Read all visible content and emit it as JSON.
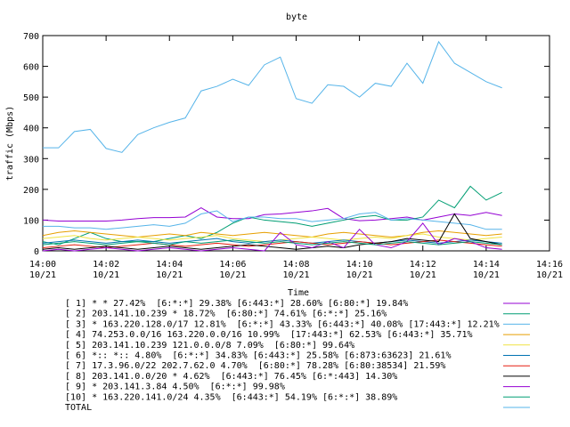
{
  "chart_data": {
    "type": "line",
    "title": "byte",
    "xlabel": "Time",
    "ylabel": "traffic (Mbps)",
    "xlim": [
      0,
      16
    ],
    "xticks": [
      {
        "value": 0,
        "label": "14:00 10/21"
      },
      {
        "value": 2,
        "label": "14:02 10/21"
      },
      {
        "value": 4,
        "label": "14:04 10/21"
      },
      {
        "value": 6,
        "label": "14:06 10/21"
      },
      {
        "value": 8,
        "label": "14:08 10/21"
      },
      {
        "value": 10,
        "label": "14:10 10/21"
      },
      {
        "value": 12,
        "label": "14:12 10/21"
      },
      {
        "value": 14,
        "label": "14:14 10/21"
      },
      {
        "value": 16,
        "label": "14:16 10/21"
      }
    ],
    "ylim": [
      0,
      700
    ],
    "yticks": [
      0,
      100,
      200,
      300,
      400,
      500,
      600,
      700
    ],
    "x": [
      0,
      0.5,
      1,
      1.5,
      2,
      2.5,
      3,
      3.5,
      4,
      4.5,
      5,
      5.5,
      6,
      6.5,
      7,
      7.5,
      8,
      8.5,
      9,
      9.5,
      10,
      10.5,
      11,
      11.5,
      12,
      12.5,
      13,
      13.5,
      14,
      14.5
    ],
    "series": [
      {
        "name": "[ 1] * * 27.42%  [6:*:*] 29.38% [6:443:*] 28.60% [6:80:*] 19.84%",
        "color": "#9400d3",
        "values": [
          100,
          97,
          97,
          97,
          97,
          100,
          105,
          108,
          108,
          110,
          140,
          110,
          105,
          105,
          118,
          120,
          125,
          130,
          138,
          105,
          98,
          100,
          105,
          110,
          100,
          110,
          120,
          115,
          125,
          115
        ]
      },
      {
        "name": "[ 2] 203.141.10.239 * 18.72%  [6:80:*] 74.61% [6:*:*] 25.16%",
        "color": "#009e73",
        "values": [
          30,
          20,
          40,
          60,
          40,
          30,
          30,
          30,
          40,
          50,
          40,
          60,
          90,
          110,
          100,
          95,
          90,
          80,
          90,
          100,
          110,
          115,
          100,
          100,
          110,
          165,
          140,
          210,
          165,
          190
        ]
      },
      {
        "name": "[ 3] * 163.220.128.0/17 12.81%  [6:*:*] 43.33% [6:443:*] 40.08% [17:443:*] 12.21%",
        "color": "#56b4e9",
        "values": [
          80,
          80,
          75,
          75,
          70,
          75,
          80,
          85,
          80,
          90,
          120,
          130,
          95,
          110,
          110,
          105,
          105,
          95,
          100,
          105,
          120,
          125,
          100,
          105,
          100,
          95,
          90,
          85,
          70,
          70
        ]
      },
      {
        "name": "[ 4] 74.253.0.0/16 163.220.0.0/16 10.99%  [17:443:*] 62.53% [6:443:*] 35.71%",
        "color": "#e69f00",
        "values": [
          50,
          60,
          65,
          60,
          55,
          50,
          45,
          50,
          55,
          50,
          60,
          55,
          50,
          55,
          60,
          55,
          50,
          45,
          55,
          60,
          55,
          50,
          45,
          50,
          60,
          65,
          60,
          55,
          50,
          55
        ]
      },
      {
        "name": "[ 5] 203.141.10.239 121.0.0.0/8 7.09%  [6:80:*] 99.64%",
        "color": "#f0e442",
        "values": [
          40,
          45,
          50,
          40,
          35,
          40,
          45,
          40,
          35,
          40,
          45,
          50,
          40,
          35,
          30,
          35,
          40,
          45,
          40,
          35,
          40,
          45,
          40,
          50,
          55,
          45,
          40,
          35,
          40,
          45
        ]
      },
      {
        "name": "[ 6] *:: *:: 4.80%  [6:*:*] 34.83% [6:443:*] 25.58% [6:873:63623] 21.61%",
        "color": "#0072b2",
        "values": [
          25,
          30,
          35,
          30,
          25,
          30,
          35,
          30,
          25,
          30,
          35,
          40,
          30,
          25,
          30,
          35,
          30,
          25,
          30,
          35,
          30,
          25,
          30,
          35,
          30,
          25,
          30,
          35,
          30,
          25
        ]
      },
      {
        "name": "[ 7] 17.3.96.0/22 202.7.62.0 4.70%  [6:80:*] 78.28% [6:80:38534] 21.59%",
        "color": "#e51e10",
        "values": [
          10,
          15,
          20,
          15,
          10,
          15,
          20,
          25,
          20,
          15,
          20,
          25,
          20,
          15,
          20,
          25,
          30,
          25,
          20,
          25,
          30,
          25,
          20,
          25,
          30,
          35,
          30,
          25,
          20,
          15
        ]
      },
      {
        "name": "[ 8] 203.141.0.0/20 * 4.62%  [6:443:*] 76.45% [6:*:443] 14.30%",
        "color": "#000000",
        "values": [
          5,
          10,
          5,
          10,
          15,
          10,
          5,
          10,
          15,
          10,
          5,
          10,
          15,
          20,
          15,
          10,
          5,
          10,
          15,
          10,
          20,
          25,
          30,
          40,
          35,
          30,
          120,
          40,
          30,
          20
        ]
      },
      {
        "name": "[ 9] * 203.141.3.84 4.50%  [6:*:*] 99.98%",
        "color": "#9400d3",
        "values": [
          0,
          5,
          0,
          5,
          10,
          5,
          0,
          5,
          10,
          5,
          0,
          5,
          10,
          5,
          0,
          60,
          20,
          10,
          30,
          10,
          70,
          20,
          10,
          30,
          90,
          20,
          40,
          30,
          10,
          5
        ]
      },
      {
        "name": "[10] * 163.220.141.0/24 4.35%  [6:443:*] 54.19% [6:*:*] 38.89%",
        "color": "#009e73",
        "values": [
          20,
          25,
          30,
          25,
          20,
          25,
          30,
          25,
          20,
          30,
          25,
          30,
          35,
          30,
          25,
          30,
          25,
          20,
          25,
          30,
          25,
          20,
          25,
          30,
          25,
          20,
          25,
          30,
          25,
          20
        ]
      },
      {
        "name": "TOTAL",
        "color": "#56b4e9",
        "values": [
          335,
          335,
          388,
          395,
          333,
          320,
          378,
          400,
          418,
          432,
          520,
          535,
          558,
          538,
          605,
          630,
          495,
          480,
          540,
          535,
          500,
          545,
          535,
          610,
          545,
          680,
          610,
          580,
          550,
          530
        ]
      }
    ]
  }
}
